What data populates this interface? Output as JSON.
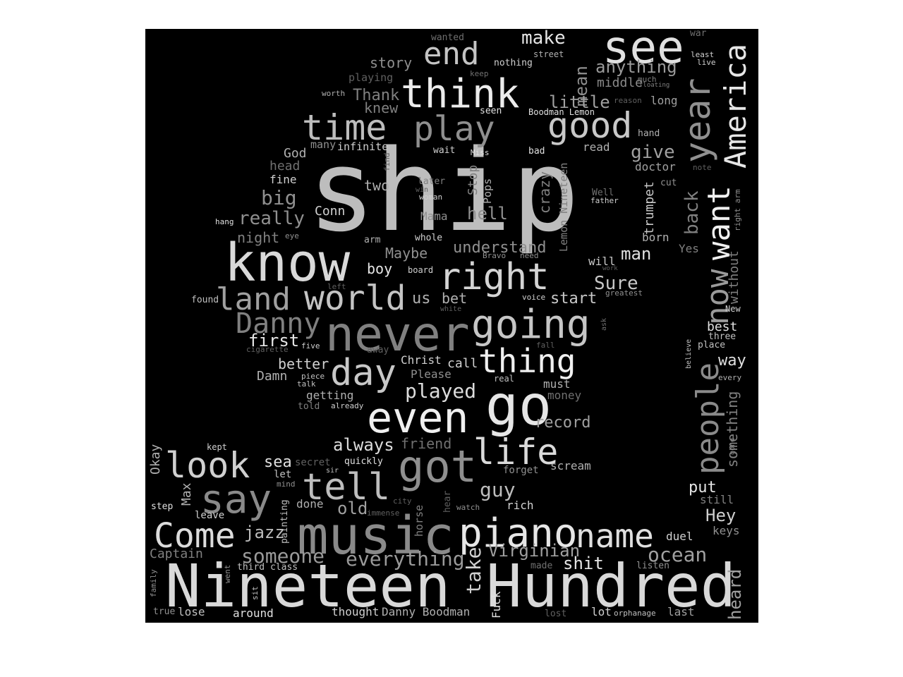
{
  "colors": {
    "background": "#000000",
    "page": "#ffffff"
  },
  "words": [
    {
      "id": "ship",
      "text": "ship",
      "color": "#bdbdbd"
    },
    {
      "id": "nineteen_hundred",
      "text": "Nineteen Hundred",
      "color": "#d9d9d9"
    },
    {
      "id": "music",
      "text": "music",
      "color": "#8a8a8a"
    },
    {
      "id": "know",
      "text": "know",
      "color": "#d9d9d9"
    },
    {
      "id": "never",
      "text": "never",
      "color": "#808080"
    },
    {
      "id": "go",
      "text": "go",
      "color": "#e6e6e6"
    },
    {
      "id": "even",
      "text": "even",
      "color": "#f0f0f0"
    },
    {
      "id": "see",
      "text": "see",
      "color": "#e0e0e0"
    },
    {
      "id": "think",
      "text": "think",
      "color": "#ececec"
    },
    {
      "id": "got",
      "text": "got",
      "color": "#8f8f8f"
    },
    {
      "id": "going",
      "text": "going",
      "color": "#c6c6c6"
    },
    {
      "id": "piano",
      "text": "piano",
      "color": "#e6e6e6"
    },
    {
      "id": "time",
      "text": "time",
      "color": "#bdbdbd"
    },
    {
      "id": "play",
      "text": "play",
      "color": "#8f8f8f"
    },
    {
      "id": "good",
      "text": "good",
      "color": "#c8c8c8"
    },
    {
      "id": "right",
      "text": "right",
      "color": "#d4d4d4"
    },
    {
      "id": "day",
      "text": "day",
      "color": "#c8c8c8"
    },
    {
      "id": "tell",
      "text": "tell",
      "color": "#bdbdbd"
    },
    {
      "id": "say",
      "text": "say",
      "color": "#8a8a8a"
    },
    {
      "id": "life",
      "text": "life",
      "color": "#dadada"
    },
    {
      "id": "look",
      "text": "look",
      "color": "#d0d0d0"
    },
    {
      "id": "come",
      "text": "Come",
      "color": "#dcdcdc"
    },
    {
      "id": "world",
      "text": "world",
      "color": "#c4c4c4"
    },
    {
      "id": "land",
      "text": "land",
      "color": "#a0a0a0"
    },
    {
      "id": "thing",
      "text": "thing",
      "color": "#f0f0f0"
    },
    {
      "id": "name",
      "text": "name",
      "color": "#e0e0e0"
    },
    {
      "id": "end",
      "text": "end",
      "color": "#c4c4c4"
    },
    {
      "id": "danny",
      "text": "Danny",
      "color": "#808080"
    },
    {
      "id": "year",
      "text": "year",
      "color": "#909090"
    },
    {
      "id": "america",
      "text": "America",
      "color": "#e6e6e6"
    },
    {
      "id": "want",
      "text": "want",
      "color": "#f0f0f0"
    },
    {
      "id": "now",
      "text": "now",
      "color": "#9a9a9a"
    },
    {
      "id": "people",
      "text": "people",
      "color": "#8a8a8a"
    },
    {
      "id": "something",
      "text": "something",
      "color": "#808080"
    },
    {
      "id": "make",
      "text": "make",
      "color": "#e6e6e6"
    },
    {
      "id": "mean",
      "text": "mean",
      "color": "#8f8f8f"
    },
    {
      "id": "anything",
      "text": "anything",
      "color": "#9a9a9a"
    },
    {
      "id": "middle",
      "text": "middle",
      "color": "#8a8a8a"
    },
    {
      "id": "little",
      "text": "little",
      "color": "#a0a0a0"
    },
    {
      "id": "give",
      "text": "give",
      "color": "#a0a0a0"
    },
    {
      "id": "story",
      "text": "story",
      "color": "#8f8f8f"
    },
    {
      "id": "thank",
      "text": "Thank",
      "color": "#808080"
    },
    {
      "id": "knew",
      "text": "knew",
      "color": "#808080"
    },
    {
      "id": "played",
      "text": "played",
      "color": "#dcdcdc"
    },
    {
      "id": "always",
      "text": "always",
      "color": "#dcdcdc"
    },
    {
      "id": "friend",
      "text": "friend",
      "color": "#707070"
    },
    {
      "id": "everything",
      "text": "everything",
      "color": "#9a9a9a"
    },
    {
      "id": "someone",
      "text": "someone",
      "color": "#9a9a9a"
    },
    {
      "id": "jazz",
      "text": "jazz",
      "color": "#bdbdbd"
    },
    {
      "id": "guy",
      "text": "guy",
      "color": "#bdbdbd"
    },
    {
      "id": "old",
      "text": "old",
      "color": "#a0a0a0"
    },
    {
      "id": "ocean",
      "text": "ocean",
      "color": "#a0a0a0"
    },
    {
      "id": "virginian",
      "text": "Virginian",
      "color": "#a0a0a0"
    },
    {
      "id": "shit",
      "text": "shit",
      "color": "#e6e6e6"
    },
    {
      "id": "take",
      "text": "take",
      "color": "#d0d0d0"
    },
    {
      "id": "record",
      "text": "record",
      "color": "#a0a0a0"
    },
    {
      "id": "sure",
      "text": "Sure",
      "color": "#c8c8c8"
    },
    {
      "id": "start",
      "text": "start",
      "color": "#c8c8c8"
    },
    {
      "id": "man",
      "text": "man",
      "color": "#e0e0e0"
    },
    {
      "id": "really",
      "text": "really",
      "color": "#909090"
    },
    {
      "id": "big",
      "text": "big",
      "color": "#909090"
    },
    {
      "id": "hell",
      "text": "hell",
      "color": "#909090"
    },
    {
      "id": "understand",
      "text": "understand",
      "color": "#909090"
    },
    {
      "id": "maybe",
      "text": "Maybe",
      "color": "#909090"
    },
    {
      "id": "first",
      "text": "first",
      "color": "#e6e6e6"
    },
    {
      "id": "better",
      "text": "better",
      "color": "#d0d0d0"
    },
    {
      "id": "hey",
      "text": "Hey",
      "color": "#d0d0d0"
    },
    {
      "id": "put",
      "text": "put",
      "color": "#e6e6e6"
    },
    {
      "id": "best",
      "text": "best",
      "color": "#e0e0e0"
    },
    {
      "id": "way",
      "text": "way",
      "color": "#e0e0e0"
    },
    {
      "id": "back",
      "text": "back",
      "color": "#808080"
    },
    {
      "id": "trumpet",
      "text": "trumpet",
      "color": "#c8c8c8"
    },
    {
      "id": "crazy",
      "text": "crazy",
      "color": "#808080"
    },
    {
      "id": "lemon_nineteen",
      "text": "Lemon Nineteen",
      "color": "#808080"
    },
    {
      "id": "stop",
      "text": "Stop",
      "color": "#808080"
    },
    {
      "id": "pops",
      "text": "Pops",
      "color": "#b0b0b0"
    },
    {
      "id": "heard",
      "text": "heard",
      "color": "#a0a0a0"
    },
    {
      "id": "without",
      "text": "without",
      "color": "#808080"
    },
    {
      "id": "captain",
      "text": "Captain",
      "color": "#808080"
    },
    {
      "id": "okay",
      "text": "Okay",
      "color": "#b0b0b0"
    },
    {
      "id": "max",
      "text": "Max",
      "color": "#b0b0b0"
    },
    {
      "id": "sea",
      "text": "sea",
      "color": "#e0e0e0"
    },
    {
      "id": "boy",
      "text": "boy",
      "color": "#e6e6e6"
    },
    {
      "id": "bet",
      "text": "bet",
      "color": "#b0b0b0"
    },
    {
      "id": "us",
      "text": "us",
      "color": "#b0b0b0"
    },
    {
      "id": "call",
      "text": "call",
      "color": "#d0d0d0"
    },
    {
      "id": "two",
      "text": "two",
      "color": "#b0b0b0"
    },
    {
      "id": "conn",
      "text": "Conn",
      "color": "#d0d0d0"
    },
    {
      "id": "night",
      "text": "night",
      "color": "#808080"
    },
    {
      "id": "god",
      "text": "God",
      "color": "#b0b0b0"
    },
    {
      "id": "head",
      "text": "head",
      "color": "#707070"
    },
    {
      "id": "fine",
      "text": "fine",
      "color": "#d0d0d0"
    },
    {
      "id": "mama",
      "text": "Mama",
      "color": "#909090"
    },
    {
      "id": "damn",
      "text": "Damn",
      "color": "#b0b0b0"
    },
    {
      "id": "getting",
      "text": "getting",
      "color": "#b0b0b0"
    },
    {
      "id": "christ",
      "text": "Christ",
      "color": "#d0d0d0"
    },
    {
      "id": "please",
      "text": "Please",
      "color": "#909090"
    },
    {
      "id": "must",
      "text": "must",
      "color": "#b0b0b0"
    },
    {
      "id": "money",
      "text": "money",
      "color": "#707070"
    },
    {
      "id": "scream",
      "text": "scream",
      "color": "#b0b0b0"
    },
    {
      "id": "rich",
      "text": "rich",
      "color": "#d0d0d0"
    },
    {
      "id": "duel",
      "text": "duel",
      "color": "#d0d0d0"
    },
    {
      "id": "keys",
      "text": "keys",
      "color": "#909090"
    },
    {
      "id": "still",
      "text": "still",
      "color": "#808080"
    },
    {
      "id": "yes",
      "text": "Yes",
      "color": "#808080"
    },
    {
      "id": "will",
      "text": "will",
      "color": "#c8c8c8"
    },
    {
      "id": "born",
      "text": "born",
      "color": "#b0b0b0"
    },
    {
      "id": "doctor",
      "text": "doctor",
      "color": "#a0a0a0"
    },
    {
      "id": "read",
      "text": "read",
      "color": "#b0b0b0"
    },
    {
      "id": "long",
      "text": "long",
      "color": "#a0a0a0"
    },
    {
      "id": "nothing",
      "text": "nothing",
      "color": "#d0d0d0"
    },
    {
      "id": "playing",
      "text": "playing",
      "color": "#606060"
    },
    {
      "id": "wanted",
      "text": "wanted",
      "color": "#707070"
    },
    {
      "id": "street",
      "text": "street",
      "color": "#b0b0b0"
    },
    {
      "id": "war",
      "text": "war",
      "color": "#707070"
    },
    {
      "id": "least",
      "text": "least",
      "color": "#d0d0d0"
    },
    {
      "id": "live",
      "text": "live",
      "color": "#d0d0d0"
    },
    {
      "id": "much",
      "text": "much",
      "color": "#808080"
    },
    {
      "id": "floating",
      "text": "floating",
      "color": "#808080"
    },
    {
      "id": "worth",
      "text": "worth",
      "color": "#b0b0b0"
    },
    {
      "id": "keep",
      "text": "keep",
      "color": "#707070"
    },
    {
      "id": "seen",
      "text": "seen",
      "color": "#e0e0e0"
    },
    {
      "id": "boodman_lemon",
      "text": "Boodman Lemon",
      "color": "#e0e0e0"
    },
    {
      "id": "reason",
      "text": "reason",
      "color": "#606060"
    },
    {
      "id": "hand",
      "text": "hand",
      "color": "#b0b0b0"
    },
    {
      "id": "bad",
      "text": "bad",
      "color": "#e0e0e0"
    },
    {
      "id": "miss",
      "text": "Miss",
      "color": "#e0e0e0"
    },
    {
      "id": "wait",
      "text": "wait",
      "color": "#d0d0d0"
    },
    {
      "id": "many",
      "text": "many",
      "color": "#909090"
    },
    {
      "id": "infinite",
      "text": "infinite",
      "color": "#d0d0d0"
    },
    {
      "id": "find",
      "text": "find",
      "color": "#606060"
    },
    {
      "id": "note",
      "text": "note",
      "color": "#606060"
    },
    {
      "id": "cut",
      "text": "cut",
      "color": "#909090"
    },
    {
      "id": "later",
      "text": "later",
      "color": "#808080"
    },
    {
      "id": "win",
      "text": "win",
      "color": "#606060"
    },
    {
      "id": "woman",
      "text": "woman",
      "color": "#d0d0d0"
    },
    {
      "id": "well",
      "text": "Well",
      "color": "#707070"
    },
    {
      "id": "father",
      "text": "father",
      "color": "#d0d0d0"
    },
    {
      "id": "right_arm",
      "text": "right arm",
      "color": "#909090"
    },
    {
      "id": "hang",
      "text": "hang",
      "color": "#e0e0e0"
    },
    {
      "id": "eye",
      "text": "eye",
      "color": "#909090"
    },
    {
      "id": "arm",
      "text": "arm",
      "color": "#b0b0b0"
    },
    {
      "id": "whole",
      "text": "whole",
      "color": "#d0d0d0"
    },
    {
      "id": "bravo",
      "text": "Bravo",
      "color": "#909090"
    },
    {
      "id": "need",
      "text": "need",
      "color": "#909090"
    },
    {
      "id": "board",
      "text": "board",
      "color": "#d0d0d0"
    },
    {
      "id": "work",
      "text": "work",
      "color": "#606060"
    },
    {
      "id": "greatest",
      "text": "greatest",
      "color": "#909090"
    },
    {
      "id": "left",
      "text": "left",
      "color": "#606060"
    },
    {
      "id": "found",
      "text": "found",
      "color": "#c0c0c0"
    },
    {
      "id": "voice",
      "text": "voice",
      "color": "#d0d0d0"
    },
    {
      "id": "white",
      "text": "white",
      "color": "#606060"
    },
    {
      "id": "new",
      "text": "New",
      "color": "#d0d0d0"
    },
    {
      "id": "three",
      "text": "three",
      "color": "#c0c0c0"
    },
    {
      "id": "place",
      "text": "place",
      "color": "#c0c0c0"
    },
    {
      "id": "ask",
      "text": "ask",
      "color": "#707070"
    },
    {
      "id": "believe",
      "text": "believe",
      "color": "#c0c0c0"
    },
    {
      "id": "every",
      "text": "every",
      "color": "#b0b0b0"
    },
    {
      "id": "gone",
      "text": "gone",
      "color": "#808080"
    },
    {
      "id": "fall",
      "text": "fall",
      "color": "#606060"
    },
    {
      "id": "cigarette",
      "text": "cigarette",
      "color": "#606060"
    },
    {
      "id": "five",
      "text": "five",
      "color": "#d0d0d0"
    },
    {
      "id": "away",
      "text": "away",
      "color": "#606060"
    },
    {
      "id": "real",
      "text": "real",
      "color": "#c0c0c0"
    },
    {
      "id": "piece",
      "text": "piece",
      "color": "#c0c0c0"
    },
    {
      "id": "talk",
      "text": "talk",
      "color": "#c0c0c0"
    },
    {
      "id": "told",
      "text": "told",
      "color": "#808080"
    },
    {
      "id": "already",
      "text": "already",
      "color": "#d0d0d0"
    },
    {
      "id": "kept",
      "text": "kept",
      "color": "#d0d0d0"
    },
    {
      "id": "secret",
      "text": "secret",
      "color": "#606060"
    },
    {
      "id": "let",
      "text": "let",
      "color": "#c0c0c0"
    },
    {
      "id": "sir",
      "text": "sir",
      "color": "#c0c0c0"
    },
    {
      "id": "mind",
      "text": "mind",
      "color": "#909090"
    },
    {
      "id": "quickly",
      "text": "quickly",
      "color": "#e0e0e0"
    },
    {
      "id": "forget",
      "text": "forget",
      "color": "#909090"
    },
    {
      "id": "step",
      "text": "step",
      "color": "#e0e0e0"
    },
    {
      "id": "leave",
      "text": "leave",
      "color": "#d0d0d0"
    },
    {
      "id": "done",
      "text": "done",
      "color": "#b0b0b0"
    },
    {
      "id": "painting",
      "text": "painting",
      "color": "#c0c0c0"
    },
    {
      "id": "horse",
      "text": "horse",
      "color": "#808080"
    },
    {
      "id": "city",
      "text": "city",
      "color": "#606060"
    },
    {
      "id": "immense",
      "text": "immense",
      "color": "#606060"
    },
    {
      "id": "hear",
      "text": "hear",
      "color": "#606060"
    },
    {
      "id": "watch",
      "text": "watch",
      "color": "#909090"
    },
    {
      "id": "made",
      "text": "made",
      "color": "#707070"
    },
    {
      "id": "listen",
      "text": "listen",
      "color": "#909090"
    },
    {
      "id": "third_class",
      "text": "third class",
      "color": "#c0c0c0"
    },
    {
      "id": "went",
      "text": "went",
      "color": "#909090"
    },
    {
      "id": "family",
      "text": "family",
      "color": "#909090"
    },
    {
      "id": "sit",
      "text": "sit",
      "color": "#c0c0c0"
    },
    {
      "id": "true",
      "text": "true",
      "color": "#909090"
    },
    {
      "id": "lose",
      "text": "lose",
      "color": "#c0c0c0"
    },
    {
      "id": "around",
      "text": "around",
      "color": "#e0e0e0"
    },
    {
      "id": "thought",
      "text": "thought",
      "color": "#d0d0d0"
    },
    {
      "id": "danny_boodman",
      "text": "Danny Boodman",
      "color": "#b0b0b0"
    },
    {
      "id": "fuck",
      "text": "Fuck",
      "color": "#e0e0e0"
    },
    {
      "id": "lost",
      "text": "lost",
      "color": "#606060"
    },
    {
      "id": "lot",
      "text": "lot",
      "color": "#d0d0d0"
    },
    {
      "id": "orphanage",
      "text": "orphanage",
      "color": "#c0c0c0"
    },
    {
      "id": "last",
      "text": "last",
      "color": "#a0a0a0"
    }
  ]
}
